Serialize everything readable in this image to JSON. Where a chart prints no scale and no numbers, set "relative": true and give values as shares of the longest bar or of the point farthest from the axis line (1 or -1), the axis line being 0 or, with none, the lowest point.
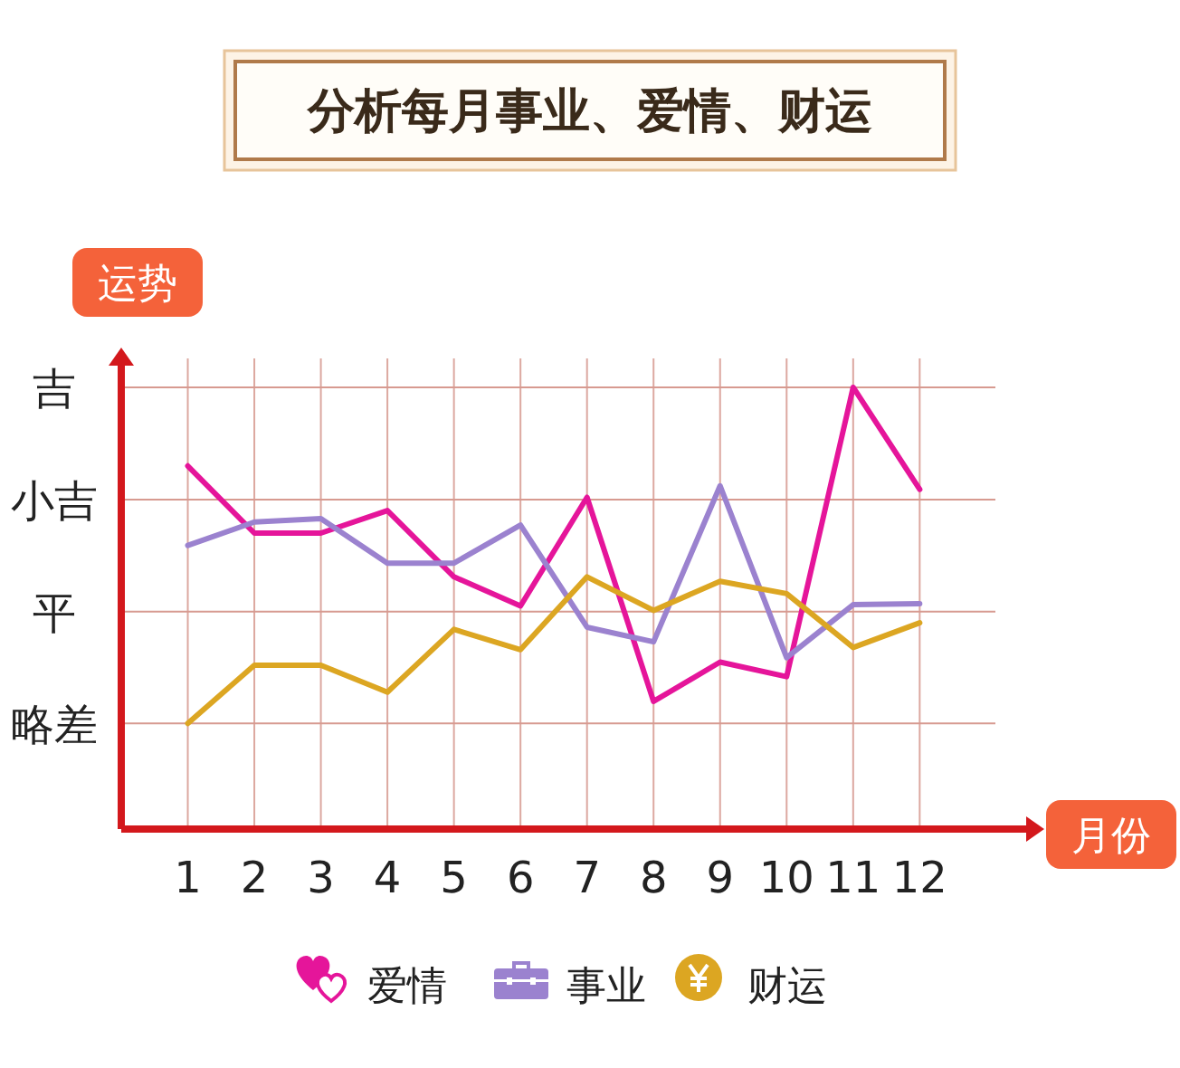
{
  "chart_data": {
    "type": "line",
    "title": "分析每月事业、爱情、财运",
    "xlabel": "月份",
    "ylabel": "运势",
    "x": [
      1,
      2,
      3,
      4,
      5,
      6,
      7,
      8,
      9,
      10,
      11,
      12
    ],
    "xlim": [
      0,
      13.6
    ],
    "xticks": [
      1,
      2,
      3,
      4,
      5,
      6,
      7,
      8,
      9,
      10,
      11,
      12
    ],
    "relative": true,
    "ref_lines": [
      {
        "axis": "y",
        "value": 0.239,
        "label": "略差"
      },
      {
        "axis": "y",
        "value": 0.492,
        "label": "平"
      },
      {
        "axis": "y",
        "value": 0.746,
        "label": "小吉"
      },
      {
        "axis": "y",
        "value": 1.0,
        "label": "吉"
      }
    ],
    "grid": "x",
    "legend": "bottom",
    "marker": "none",
    "line_style": "solid",
    "series": [
      {
        "name": "爱情",
        "color": "#e5159a",
        "values": [
          0.822,
          0.67,
          0.67,
          0.721,
          0.571,
          0.505,
          0.751,
          0.289,
          0.378,
          0.345,
          1.0,
          0.769
        ]
      },
      {
        "name": "事业",
        "color": "#9b82cf",
        "values": [
          0.642,
          0.695,
          0.703,
          0.602,
          0.602,
          0.688,
          0.457,
          0.424,
          0.777,
          0.388,
          0.508,
          0.51
        ]
      },
      {
        "name": "财运",
        "color": "#dca622",
        "values": [
          0.239,
          0.371,
          0.371,
          0.31,
          0.452,
          0.406,
          0.571,
          0.495,
          0.561,
          0.533,
          0.411,
          0.467
        ]
      }
    ]
  }
}
